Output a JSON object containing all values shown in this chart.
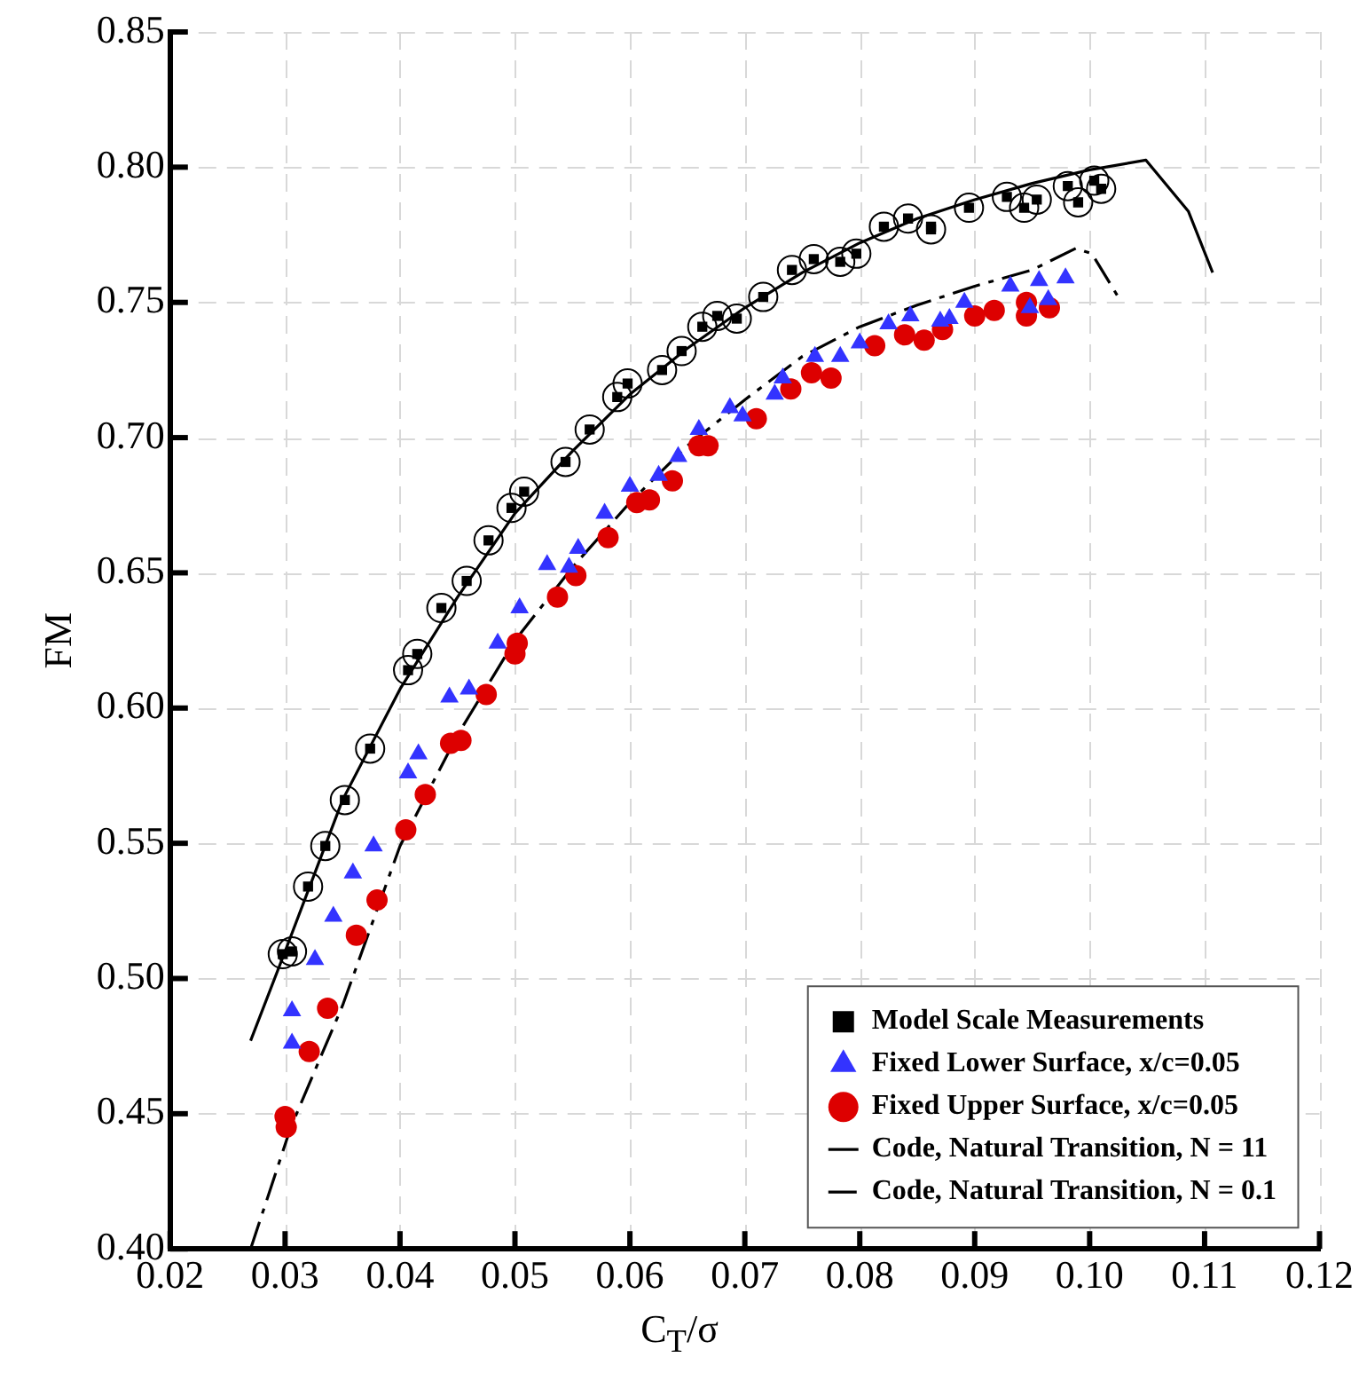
{
  "chart_data": {
    "type": "scatter",
    "xlabel": "C$_{T}$/σ",
    "ylabel": "FM",
    "xlim": [
      0.02,
      0.12
    ],
    "xticks": [
      {
        "value": 0.02,
        "label": "0.02"
      },
      {
        "value": 0.03,
        "label": "0.03"
      },
      {
        "value": 0.04,
        "label": "0.04"
      },
      {
        "value": 0.05,
        "label": "0.05"
      },
      {
        "value": 0.06,
        "label": "0.06"
      },
      {
        "value": 0.07,
        "label": "0.07"
      },
      {
        "value": 0.08,
        "label": "0.08"
      },
      {
        "value": 0.09,
        "label": "0.09"
      },
      {
        "value": 0.1,
        "label": "0.10"
      },
      {
        "value": 0.11,
        "label": "0.11"
      },
      {
        "value": 0.12,
        "label": "0.12"
      }
    ],
    "ylim": [
      0.4,
      0.85
    ],
    "yticks": [
      {
        "value": 0.4,
        "label": "0.40"
      },
      {
        "value": 0.45,
        "label": "0.45"
      },
      {
        "value": 0.5,
        "label": "0.50"
      },
      {
        "value": 0.55,
        "label": "0.55"
      },
      {
        "value": 0.6,
        "label": "0.60"
      },
      {
        "value": 0.65,
        "label": "0.65"
      },
      {
        "value": 0.7,
        "label": "0.70"
      },
      {
        "value": 0.75,
        "label": "0.75"
      },
      {
        "value": 0.8,
        "label": "0.80"
      },
      {
        "value": 0.85,
        "label": "0.85"
      }
    ],
    "grid": true,
    "legend": "bottom right",
    "series": [
      {
        "type": "scatter",
        "color": "#000000",
        "marker": "circle",
        "x": [
          0.0298,
          0.0306,
          0.032,
          0.0335,
          0.0352,
          0.0374,
          0.0407,
          0.0415,
          0.0436,
          0.0458,
          0.0477,
          0.0497,
          0.0508,
          0.0544,
          0.0565,
          0.0589,
          0.0598,
          0.0628,
          0.0645,
          0.0663,
          0.0676,
          0.0693,
          0.0716,
          0.0741,
          0.076,
          0.0783,
          0.0797,
          0.0821,
          0.0842,
          0.0862,
          0.0895,
          0.0928,
          0.0943,
          0.0954,
          0.0981,
          0.099,
          0.1004,
          0.101
        ],
        "values": [
          0.509,
          0.51,
          0.534,
          0.549,
          0.566,
          0.585,
          0.614,
          0.62,
          0.637,
          0.647,
          0.662,
          0.674,
          0.68,
          0.691,
          0.703,
          0.715,
          0.72,
          0.725,
          0.732,
          0.741,
          0.745,
          0.744,
          0.752,
          0.762,
          0.766,
          0.765,
          0.768,
          0.778,
          0.781,
          0.777,
          0.785,
          0.789,
          0.785,
          0.788,
          0.793,
          0.787,
          0.795,
          0.792
        ]
      },
      {
        "type": "scatter",
        "name": "Model Scale Measurements",
        "color": "#000000",
        "marker": "square",
        "x": [
          0.0298,
          0.0306,
          0.032,
          0.0335,
          0.0352,
          0.0374,
          0.0407,
          0.0415,
          0.0436,
          0.0458,
          0.0477,
          0.0497,
          0.0508,
          0.0544,
          0.0565,
          0.0589,
          0.0598,
          0.0628,
          0.0645,
          0.0663,
          0.0676,
          0.0693,
          0.0716,
          0.0741,
          0.076,
          0.0783,
          0.0797,
          0.0821,
          0.0842,
          0.0862,
          0.0862,
          0.0895,
          0.0928,
          0.0943,
          0.0954,
          0.0981,
          0.099,
          0.1004,
          0.101
        ],
        "values": [
          0.509,
          0.51,
          0.534,
          0.549,
          0.566,
          0.585,
          0.614,
          0.62,
          0.637,
          0.647,
          0.662,
          0.674,
          0.68,
          0.691,
          0.703,
          0.715,
          0.72,
          0.725,
          0.732,
          0.741,
          0.745,
          0.744,
          0.752,
          0.762,
          0.766,
          0.765,
          0.768,
          0.778,
          0.781,
          0.778,
          0.777,
          0.785,
          0.789,
          0.785,
          0.788,
          0.793,
          0.787,
          0.795,
          0.792
        ]
      },
      {
        "type": "scatter",
        "name": "Fixed Lower Surface, x/c=0.05",
        "color": "#3333ff",
        "marker": "triangle",
        "x": [
          0.0306,
          0.0306,
          0.0326,
          0.0342,
          0.0359,
          0.0377,
          0.0407,
          0.0416,
          0.0443,
          0.046,
          0.0485,
          0.0504,
          0.0528,
          0.0547,
          0.0555,
          0.0578,
          0.06,
          0.0625,
          0.0642,
          0.066,
          0.0687,
          0.0698,
          0.0726,
          0.0733,
          0.0761,
          0.0783,
          0.08,
          0.0825,
          0.0844,
          0.087,
          0.0878,
          0.0891,
          0.0931,
          0.0948,
          0.0956,
          0.0964,
          0.0979
        ],
        "values": [
          0.476,
          0.488,
          0.507,
          0.523,
          0.539,
          0.549,
          0.576,
          0.583,
          0.604,
          0.607,
          0.624,
          0.637,
          0.653,
          0.652,
          0.659,
          0.672,
          0.682,
          0.686,
          0.693,
          0.703,
          0.711,
          0.708,
          0.716,
          0.722,
          0.73,
          0.73,
          0.735,
          0.742,
          0.745,
          0.743,
          0.744,
          0.75,
          0.756,
          0.748,
          0.758,
          0.751,
          0.759
        ]
      },
      {
        "type": "scatter",
        "name": "Fixed Upper Surface, x/c=0.05",
        "color": "#dd0000",
        "marker": "circle",
        "x": [
          0.03,
          0.0301,
          0.0321,
          0.0337,
          0.0362,
          0.038,
          0.0405,
          0.0422,
          0.0444,
          0.0453,
          0.0475,
          0.05,
          0.0502,
          0.0537,
          0.0553,
          0.0581,
          0.0606,
          0.0617,
          0.0637,
          0.066,
          0.0668,
          0.071,
          0.074,
          0.0758,
          0.0775,
          0.0813,
          0.0839,
          0.0856,
          0.0872,
          0.09,
          0.0917,
          0.0945,
          0.0945,
          0.0965
        ],
        "values": [
          0.449,
          0.445,
          0.473,
          0.489,
          0.516,
          0.529,
          0.555,
          0.568,
          0.587,
          0.588,
          0.605,
          0.62,
          0.624,
          0.641,
          0.649,
          0.663,
          0.676,
          0.677,
          0.684,
          0.697,
          0.697,
          0.707,
          0.718,
          0.724,
          0.722,
          0.734,
          0.738,
          0.736,
          0.74,
          0.745,
          0.747,
          0.75,
          0.745,
          0.748
        ]
      },
      {
        "type": "line",
        "name": "Code, Natural Transition, N = 11",
        "color": "#000000",
        "line_style": "solid",
        "x": [
          0.027,
          0.03,
          0.035,
          0.04,
          0.045,
          0.05,
          0.055,
          0.06,
          0.065,
          0.07,
          0.075,
          0.08,
          0.085,
          0.09,
          0.095,
          0.1,
          0.1049,
          0.1086,
          0.1107
        ],
        "values": [
          0.477,
          0.51,
          0.566,
          0.607,
          0.641,
          0.672,
          0.695,
          0.716,
          0.733,
          0.748,
          0.761,
          0.772,
          0.781,
          0.788,
          0.794,
          0.799,
          0.8026,
          0.7836,
          0.761
        ]
      },
      {
        "type": "line",
        "name": "Code, Natural Transition, N = 0.1",
        "color": "#000000",
        "line_style": "dashed",
        "x": [
          0.027,
          0.0305,
          0.035,
          0.04,
          0.045,
          0.05,
          0.055,
          0.06,
          0.065,
          0.07,
          0.075,
          0.08,
          0.085,
          0.09,
          0.095,
          0.0988,
          0.1002,
          0.1024
        ],
        "values": [
          0.4,
          0.445,
          0.49,
          0.549,
          0.59,
          0.625,
          0.652,
          0.676,
          0.697,
          0.714,
          0.73,
          0.741,
          0.749,
          0.756,
          0.762,
          0.77,
          0.768,
          0.7526
        ]
      }
    ]
  }
}
